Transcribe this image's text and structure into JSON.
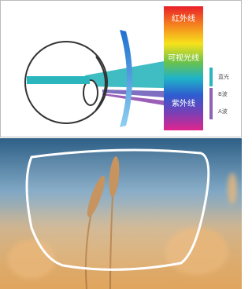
{
  "labels": {
    "infrared": "红外线",
    "visible": "可视光线",
    "ultraviolet": "紫外线",
    "blue_light": "蓝光",
    "uvb": "B波",
    "uva": "A波"
  }
}
